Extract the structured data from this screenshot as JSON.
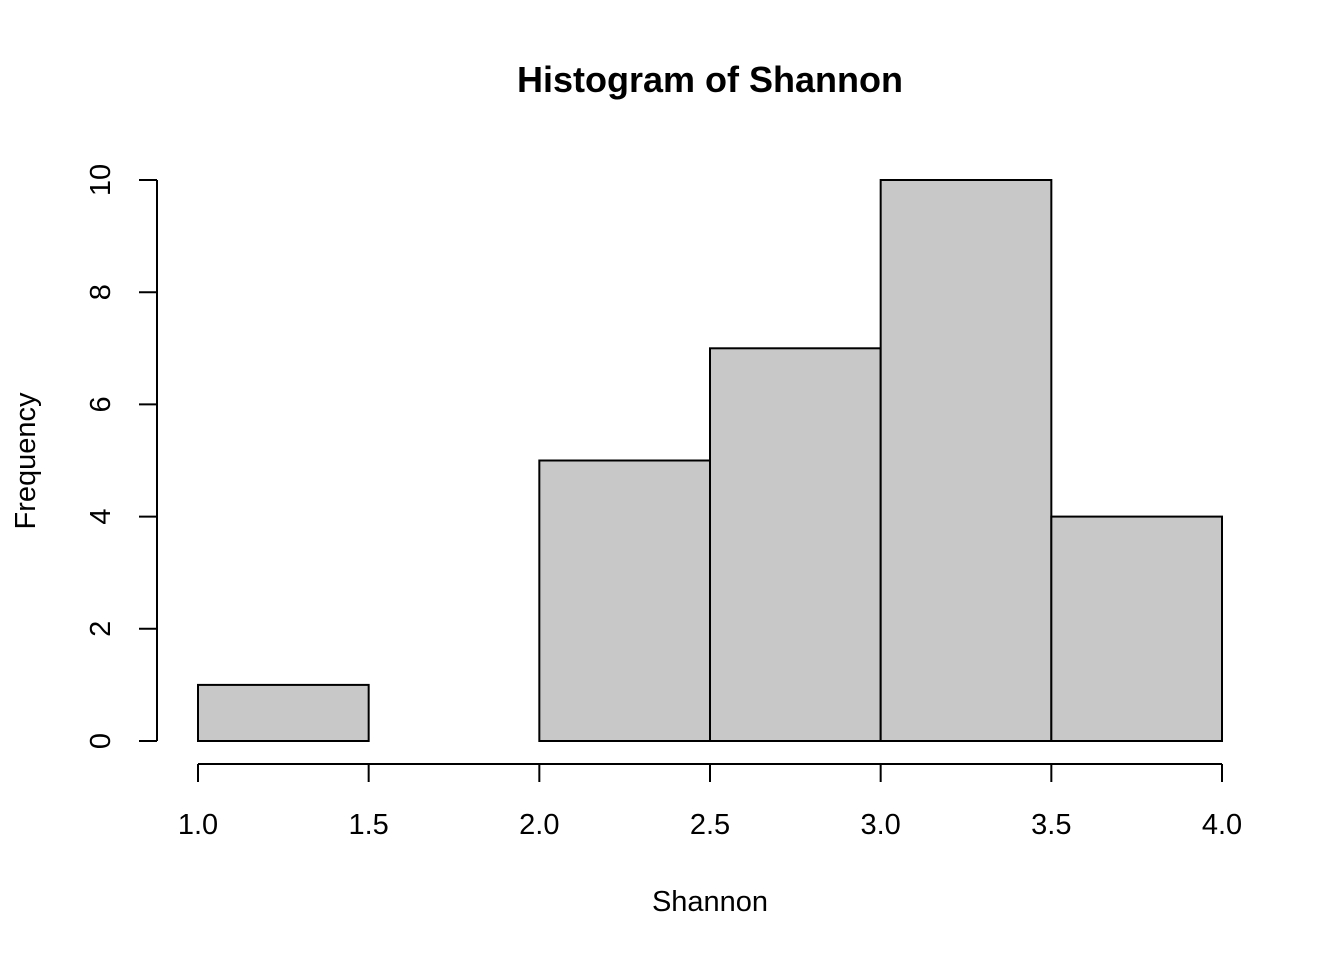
{
  "chart_data": {
    "type": "bar",
    "title": "Histogram of Shannon",
    "xlabel": "Shannon",
    "ylabel": "Frequency",
    "bins": [
      {
        "start": 1.0,
        "end": 1.5,
        "count": 1
      },
      {
        "start": 1.5,
        "end": 2.0,
        "count": 0
      },
      {
        "start": 2.0,
        "end": 2.5,
        "count": 5
      },
      {
        "start": 2.5,
        "end": 3.0,
        "count": 7
      },
      {
        "start": 3.0,
        "end": 3.5,
        "count": 10
      },
      {
        "start": 3.5,
        "end": 4.0,
        "count": 4
      }
    ],
    "xlim": [
      1.0,
      4.0
    ],
    "ylim": [
      0,
      10
    ],
    "x_ticks": [
      "1.0",
      "1.5",
      "2.0",
      "2.5",
      "3.0",
      "3.5",
      "4.0"
    ],
    "y_ticks": [
      "0",
      "2",
      "4",
      "6",
      "8",
      "10"
    ],
    "grid": false,
    "bar_color": "#c8c8c8",
    "edge_color": "#000000"
  }
}
